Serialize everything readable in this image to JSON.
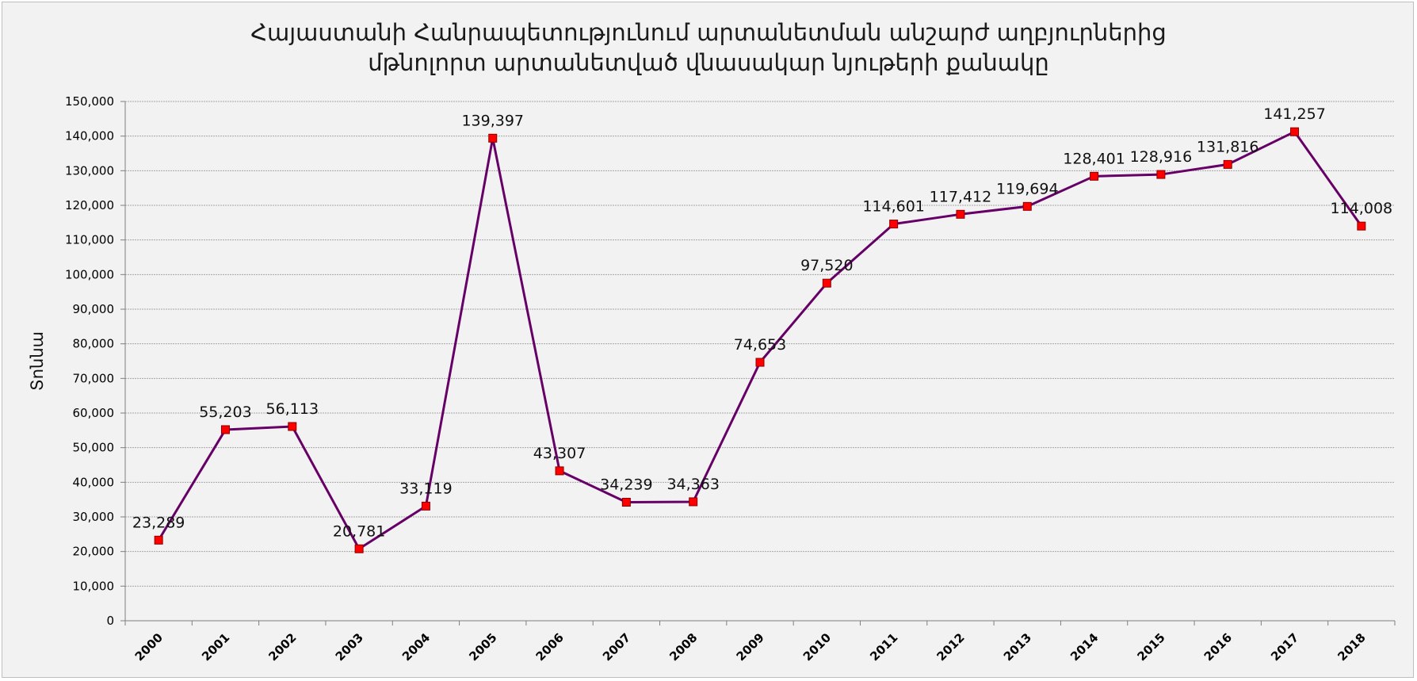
{
  "chart_data": {
    "type": "line",
    "title": [
      "Հայաստանի Հանրապետությունում արտանետման անշարժ աղբյուրներից",
      "մթնոլորտ արտանետված վնասակար նյութերի քանակը"
    ],
    "ylabel": "Տոննա",
    "xlabel": "",
    "categories": [
      "2000",
      "2001",
      "2002",
      "2003",
      "2004",
      "2005",
      "2006",
      "2007",
      "2008",
      "2009",
      "2010",
      "2011",
      "2012",
      "2013",
      "2014",
      "2015",
      "2016",
      "2017",
      "2018"
    ],
    "series": [
      {
        "values": [
          23289,
          55203,
          56113,
          20781,
          33119,
          139397,
          43307,
          34239,
          34363,
          74653,
          97520,
          114601,
          117412,
          119694,
          128401,
          128916,
          131816,
          141257,
          114008
        ],
        "labels": [
          "23,289",
          "55,203",
          "56,113",
          "20,781",
          "33,119",
          "139,397",
          "43,307",
          "34,239",
          "34,363",
          "74,653",
          "97,520",
          "114,601",
          "117,412",
          "119,694",
          "128,401",
          "128,916",
          "131,816",
          "141,257",
          "114,008"
        ]
      }
    ],
    "ylim": [
      0,
      150000
    ],
    "yticks": [
      0,
      10000,
      20000,
      30000,
      40000,
      50000,
      60000,
      70000,
      80000,
      90000,
      100000,
      110000,
      120000,
      130000,
      140000,
      150000
    ],
    "ytick_labels": [
      "0",
      "10,000",
      "20,000",
      "30,000",
      "40,000",
      "50,000",
      "60,000",
      "70,000",
      "80,000",
      "90,000",
      "100,000",
      "110,000",
      "120,000",
      "130,000",
      "140,000",
      "150,000"
    ],
    "grid": true,
    "colors": {
      "line": "#660066",
      "marker": "#ff0000",
      "marker_border": "#8b0000",
      "grid": "#a6a6a6",
      "background": "#f2f2f2"
    }
  }
}
